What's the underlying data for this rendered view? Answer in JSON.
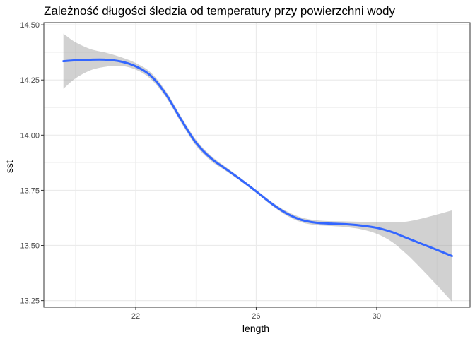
{
  "chart_data": {
    "type": "line",
    "title": "Zależność długości śledzia od temperatury przy powierzchni wody",
    "xlabel": "length",
    "ylabel": "sst",
    "xlim": [
      18.95,
      33.1
    ],
    "ylim": [
      13.22,
      14.51
    ],
    "x_ticks": [
      22,
      26,
      30
    ],
    "x_tick_labels": [
      "22",
      "26",
      "30"
    ],
    "y_ticks": [
      13.25,
      13.5,
      13.75,
      14.0,
      14.25,
      14.5
    ],
    "y_tick_labels": [
      "13.25",
      "13.50",
      "13.75",
      "14.00",
      "14.25",
      "14.50"
    ],
    "grid": true,
    "legend": "none",
    "colors": {
      "line": "#3366FF",
      "band": "#999999",
      "grid": "#ebebeb",
      "border": "#333333"
    },
    "series": [
      {
        "x": [
          19.6,
          20.0,
          20.5,
          21.0,
          21.5,
          22.0,
          22.5,
          23.0,
          23.5,
          24.0,
          24.5,
          25.0,
          25.5,
          26.0,
          26.5,
          27.0,
          27.5,
          28.0,
          28.5,
          29.0,
          29.5,
          30.0,
          30.5,
          31.0,
          31.5,
          32.0,
          32.5
        ],
        "y": [
          14.335,
          14.339,
          14.342,
          14.342,
          14.334,
          14.312,
          14.269,
          14.186,
          14.072,
          13.966,
          13.895,
          13.846,
          13.797,
          13.745,
          13.691,
          13.646,
          13.616,
          13.603,
          13.599,
          13.596,
          13.59,
          13.58,
          13.561,
          13.534,
          13.507,
          13.48,
          13.452
        ],
        "lower": [
          14.21,
          14.257,
          14.294,
          14.31,
          14.314,
          14.297,
          14.254,
          14.172,
          14.058,
          13.952,
          13.883,
          13.837,
          13.79,
          13.738,
          13.683,
          13.636,
          13.605,
          13.592,
          13.588,
          13.583,
          13.573,
          13.553,
          13.517,
          13.46,
          13.392,
          13.32,
          13.245
        ],
        "upper": [
          14.46,
          14.421,
          14.39,
          14.374,
          14.354,
          14.327,
          14.284,
          14.2,
          14.086,
          13.98,
          13.907,
          13.855,
          13.804,
          13.752,
          13.699,
          13.656,
          13.627,
          13.614,
          13.61,
          13.609,
          13.607,
          13.607,
          13.605,
          13.608,
          13.622,
          13.64,
          13.659
        ]
      }
    ]
  }
}
